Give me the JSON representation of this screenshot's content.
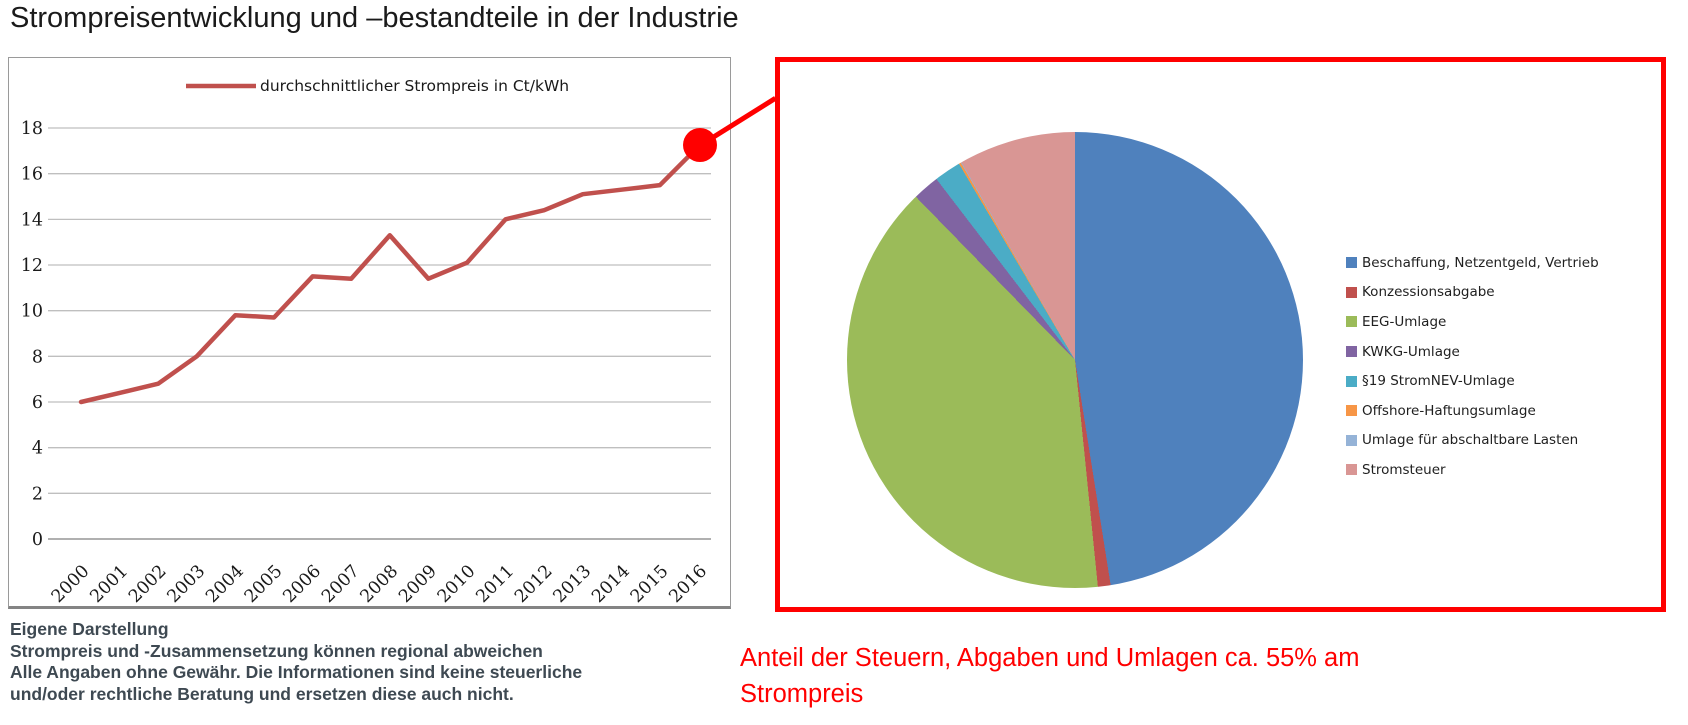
{
  "title": "Strompreisentwicklung und –bestandteile in der Industrie",
  "colors": {
    "callout_red": "#FF0000",
    "line_series_red": "#C0504D",
    "gridline": "#BFBFBF",
    "axis_line": "#808080",
    "panel_border_gray": "#9A9A9A",
    "footnote_text": "#3E4952"
  },
  "footnote": {
    "lines": [
      "Eigene Darstellung",
      "Strompreis und -Zusammensetzung können regional abweichen",
      "Alle Angaben ohne Gewähr. Die Informationen sind keine steuerliche",
      "und/oder rechtliche Beratung und ersetzen diese auch nicht."
    ]
  },
  "annotation": {
    "text": "Anteil der Steuern, Abgaben und Umlagen ca. 55% am Strompreis"
  },
  "chart_data": [
    {
      "type": "line",
      "title": "",
      "categories": [
        "2000",
        "2001",
        "2002",
        "2003",
        "2004",
        "2005",
        "2006",
        "2007",
        "2008",
        "2009",
        "2010",
        "2011",
        "2012",
        "2013",
        "2014",
        "2015",
        "2016"
      ],
      "series": [
        {
          "name": "durchschnittlicher Strompreis in Ct/kWh",
          "color": "#C0504D",
          "values": [
            6.0,
            6.4,
            6.8,
            8.0,
            9.8,
            9.7,
            11.5,
            11.4,
            13.3,
            11.4,
            12.1,
            14.0,
            14.4,
            15.1,
            15.3,
            15.5,
            17.2
          ]
        }
      ],
      "xlabel": "",
      "ylabel": "",
      "ylim": [
        0,
        18
      ],
      "ytick_step": 2,
      "grid": true,
      "legend_position": "top",
      "highlight": {
        "category": "2016",
        "value": 17.2,
        "marker": "red-dot-with-callout-to-pie"
      }
    },
    {
      "type": "pie",
      "start_angle": "12-o-clock",
      "direction": "clockwise",
      "unit": "percent",
      "legend_position": "right",
      "slices": [
        {
          "label": "Beschaffung, Netzentgeld, Vertrieb",
          "value": 47.5,
          "color": "#4F81BD"
        },
        {
          "label": "Konzessionsabgabe",
          "value": 0.9,
          "color": "#C0504D"
        },
        {
          "label": "EEG-Umlage",
          "value": 39.3,
          "color": "#9BBB59"
        },
        {
          "label": "KWKG-Umlage",
          "value": 1.9,
          "color": "#8064A2"
        },
        {
          "label": "§19 StromNEV-Umlage",
          "value": 1.9,
          "color": "#4BACC6"
        },
        {
          "label": "Offshore-Haftungsumlage",
          "value": 0.15,
          "color": "#F79646"
        },
        {
          "label": "Umlage für abschaltbare Lasten",
          "value": 0.05,
          "color": "#95B3D7"
        },
        {
          "label": "Stromsteuer",
          "value": 8.3,
          "color": "#D99694"
        }
      ]
    }
  ]
}
